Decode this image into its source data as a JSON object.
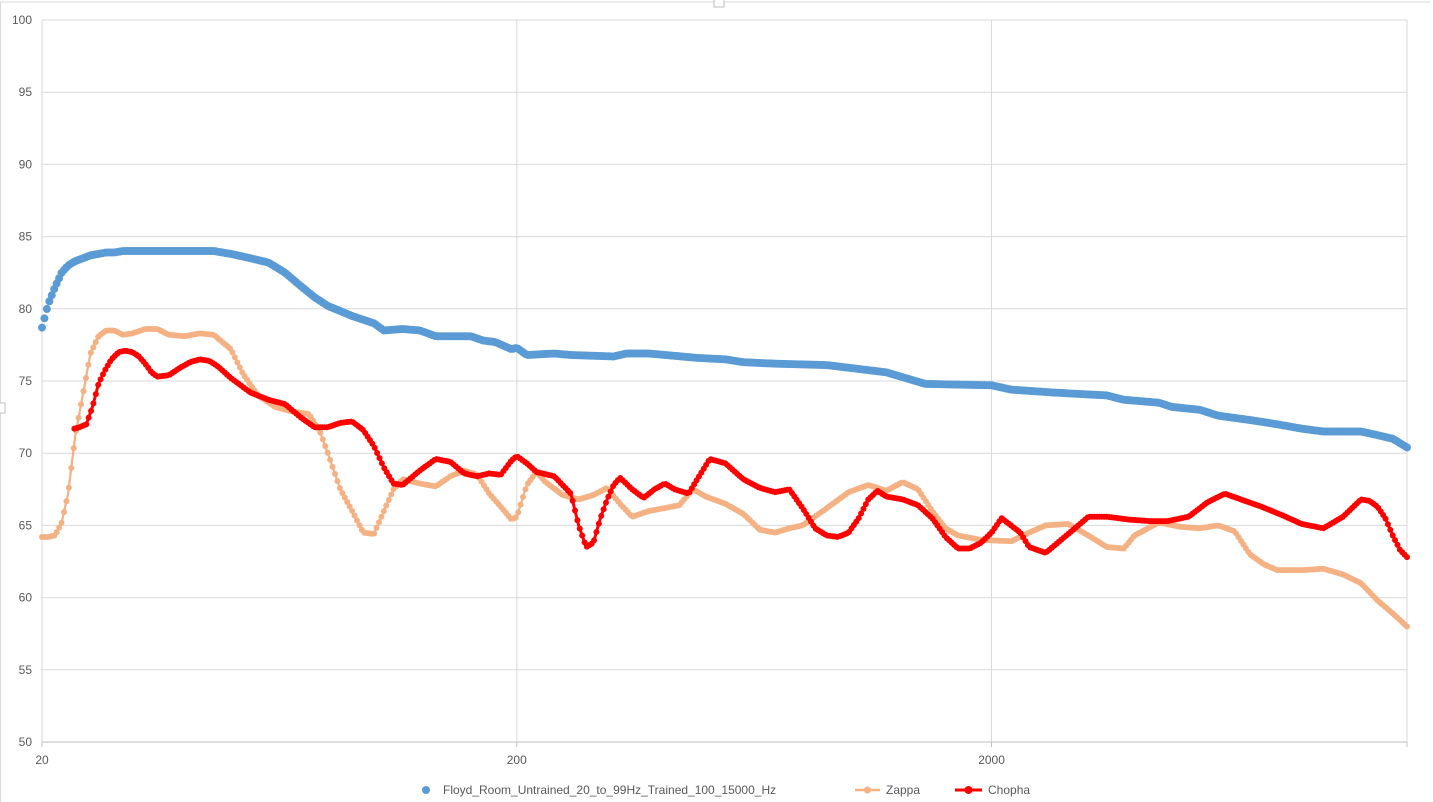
{
  "chart_data": {
    "type": "line",
    "title": "",
    "xlabel": "",
    "ylabel": "",
    "x_scale": "log",
    "xlim": [
      20,
      15000
    ],
    "ylim": [
      50,
      100
    ],
    "grid": true,
    "legend_position": "bottom",
    "x_ticks": [
      20,
      200,
      2000
    ],
    "x_tick_labels": [
      "20",
      "200",
      "2000"
    ],
    "y_ticks": [
      50,
      55,
      60,
      65,
      70,
      75,
      80,
      85,
      90,
      95,
      100
    ],
    "y_tick_labels": [
      "50",
      "55",
      "60",
      "65",
      "70",
      "75",
      "80",
      "85",
      "90",
      "95",
      "100"
    ],
    "series": [
      {
        "name": "Floyd_Room_Untrained_20_to_99Hz_Trained_100_15000_Hz",
        "color": "#5b9bd5",
        "line": false,
        "points": [
          [
            20,
            78.7
          ],
          [
            20.6,
            80.3
          ],
          [
            21.3,
            81.5
          ],
          [
            22,
            82.5
          ],
          [
            22.7,
            83
          ],
          [
            23.5,
            83.3
          ],
          [
            24.4,
            83.5
          ],
          [
            25.3,
            83.7
          ],
          [
            26.3,
            83.8
          ],
          [
            27.3,
            83.9
          ],
          [
            28.4,
            83.9
          ],
          [
            29.6,
            84
          ],
          [
            31,
            84
          ],
          [
            33,
            84
          ],
          [
            35,
            84
          ],
          [
            37,
            84
          ],
          [
            40,
            84
          ],
          [
            43,
            84
          ],
          [
            46,
            84
          ],
          [
            50,
            83.8
          ],
          [
            55,
            83.5
          ],
          [
            60,
            83.2
          ],
          [
            65,
            82.5
          ],
          [
            70,
            81.6
          ],
          [
            75,
            80.8
          ],
          [
            80,
            80.2
          ],
          [
            90,
            79.5
          ],
          [
            100,
            79
          ],
          [
            105,
            78.5
          ],
          [
            115,
            78.6
          ],
          [
            125,
            78.5
          ],
          [
            135,
            78.1
          ],
          [
            160,
            78.1
          ],
          [
            170,
            77.8
          ],
          [
            180,
            77.7
          ],
          [
            195,
            77.2
          ],
          [
            200,
            77.3
          ],
          [
            210,
            76.8
          ],
          [
            240,
            76.9
          ],
          [
            260,
            76.8
          ],
          [
            320,
            76.7
          ],
          [
            340,
            76.9
          ],
          [
            380,
            76.9
          ],
          [
            480,
            76.6
          ],
          [
            550,
            76.5
          ],
          [
            600,
            76.3
          ],
          [
            700,
            76.2
          ],
          [
            900,
            76.1
          ],
          [
            1200,
            75.6
          ],
          [
            1450,
            74.8
          ],
          [
            2000,
            74.7
          ],
          [
            2200,
            74.4
          ],
          [
            2700,
            74.2
          ],
          [
            3500,
            74
          ],
          [
            3800,
            73.7
          ],
          [
            4500,
            73.5
          ],
          [
            4800,
            73.2
          ],
          [
            5500,
            73
          ],
          [
            6000,
            72.6
          ],
          [
            7000,
            72.3
          ],
          [
            8000,
            72
          ],
          [
            9000,
            71.7
          ],
          [
            10000,
            71.5
          ],
          [
            11000,
            71.5
          ],
          [
            12000,
            71.5
          ],
          [
            12800,
            71.3
          ],
          [
            14000,
            71
          ],
          [
            15000,
            70.4
          ]
        ]
      },
      {
        "name": "Zappa",
        "color": "#f4b183",
        "line": true,
        "points": [
          [
            20,
            64.2
          ],
          [
            20.6,
            64.2
          ],
          [
            21.3,
            64.3
          ],
          [
            22,
            65.2
          ],
          [
            22.7,
            67.2
          ],
          [
            23.5,
            71.2
          ],
          [
            24.4,
            74.1
          ],
          [
            25.3,
            76.9
          ],
          [
            26.3,
            78.1
          ],
          [
            27.3,
            78.5
          ],
          [
            28.4,
            78.5
          ],
          [
            29.6,
            78.2
          ],
          [
            31,
            78.3
          ],
          [
            33,
            78.6
          ],
          [
            35,
            78.6
          ],
          [
            37,
            78.2
          ],
          [
            40,
            78.1
          ],
          [
            43,
            78.3
          ],
          [
            46,
            78.2
          ],
          [
            50,
            77.2
          ],
          [
            53,
            75.5
          ],
          [
            57,
            74
          ],
          [
            62,
            73.2
          ],
          [
            67,
            72.9
          ],
          [
            73,
            72.7
          ],
          [
            77,
            71.5
          ],
          [
            80,
            70
          ],
          [
            85,
            67.5
          ],
          [
            90,
            66
          ],
          [
            95,
            64.5
          ],
          [
            100,
            64.4
          ],
          [
            105,
            66
          ],
          [
            110,
            67.5
          ],
          [
            115,
            68.2
          ],
          [
            125,
            67.9
          ],
          [
            135,
            67.7
          ],
          [
            145,
            68.4
          ],
          [
            155,
            68.8
          ],
          [
            165,
            68.5
          ],
          [
            175,
            67.2
          ],
          [
            185,
            66.3
          ],
          [
            195,
            65.4
          ],
          [
            200,
            65.6
          ],
          [
            210,
            67.8
          ],
          [
            220,
            68.7
          ],
          [
            230,
            68
          ],
          [
            250,
            67.1
          ],
          [
            270,
            66.8
          ],
          [
            290,
            67.1
          ],
          [
            310,
            67.6
          ],
          [
            330,
            66.5
          ],
          [
            350,
            65.6
          ],
          [
            380,
            66
          ],
          [
            410,
            66.2
          ],
          [
            440,
            66.4
          ],
          [
            470,
            67.5
          ],
          [
            500,
            67
          ],
          [
            550,
            66.5
          ],
          [
            600,
            65.8
          ],
          [
            650,
            64.7
          ],
          [
            700,
            64.5
          ],
          [
            750,
            64.8
          ],
          [
            800,
            65
          ],
          [
            900,
            66.2
          ],
          [
            1000,
            67.3
          ],
          [
            1100,
            67.8
          ],
          [
            1200,
            67.4
          ],
          [
            1300,
            68
          ],
          [
            1400,
            67.5
          ],
          [
            1500,
            66
          ],
          [
            1600,
            64.8
          ],
          [
            1700,
            64.3
          ],
          [
            1900,
            64
          ],
          [
            2200,
            63.9
          ],
          [
            2400,
            64.5
          ],
          [
            2600,
            65
          ],
          [
            2900,
            65.1
          ],
          [
            3200,
            64.3
          ],
          [
            3500,
            63.5
          ],
          [
            3800,
            63.4
          ],
          [
            4000,
            64.3
          ],
          [
            4500,
            65.2
          ],
          [
            5000,
            64.9
          ],
          [
            5500,
            64.8
          ],
          [
            6000,
            65
          ],
          [
            6500,
            64.6
          ],
          [
            7000,
            63
          ],
          [
            7500,
            62.3
          ],
          [
            8000,
            61.9
          ],
          [
            9000,
            61.9
          ],
          [
            10000,
            62
          ],
          [
            11000,
            61.6
          ],
          [
            12000,
            61
          ],
          [
            13000,
            59.8
          ],
          [
            14000,
            58.9
          ],
          [
            15000,
            58
          ]
        ]
      },
      {
        "name": "Chopha",
        "color": "#ff0000",
        "line": true,
        "points": [
          [
            23.4,
            71.7
          ],
          [
            24,
            71.8
          ],
          [
            24.8,
            72
          ],
          [
            25.6,
            73.3
          ],
          [
            26.3,
            74.8
          ],
          [
            27.1,
            75.7
          ],
          [
            28,
            76.5
          ],
          [
            29,
            77
          ],
          [
            30,
            77.1
          ],
          [
            31,
            77
          ],
          [
            32,
            76.7
          ],
          [
            33,
            76.2
          ],
          [
            34,
            75.6
          ],
          [
            35,
            75.3
          ],
          [
            37,
            75.4
          ],
          [
            39,
            75.9
          ],
          [
            41,
            76.3
          ],
          [
            43,
            76.5
          ],
          [
            45,
            76.4
          ],
          [
            47,
            76
          ],
          [
            50,
            75.2
          ],
          [
            55,
            74.2
          ],
          [
            60,
            73.7
          ],
          [
            65,
            73.4
          ],
          [
            70,
            72.5
          ],
          [
            75,
            71.8
          ],
          [
            80,
            71.8
          ],
          [
            85,
            72.1
          ],
          [
            90,
            72.2
          ],
          [
            95,
            71.6
          ],
          [
            100,
            70.5
          ],
          [
            105,
            69
          ],
          [
            110,
            67.9
          ],
          [
            115,
            67.8
          ],
          [
            125,
            68.8
          ],
          [
            135,
            69.6
          ],
          [
            145,
            69.4
          ],
          [
            155,
            68.6
          ],
          [
            165,
            68.4
          ],
          [
            175,
            68.6
          ],
          [
            185,
            68.5
          ],
          [
            195,
            69.5
          ],
          [
            200,
            69.8
          ],
          [
            210,
            69.3
          ],
          [
            220,
            68.7
          ],
          [
            240,
            68.4
          ],
          [
            260,
            67.2
          ],
          [
            270,
            65
          ],
          [
            280,
            63.5
          ],
          [
            290,
            63.8
          ],
          [
            300,
            65.5
          ],
          [
            310,
            66.8
          ],
          [
            320,
            67.8
          ],
          [
            330,
            68.3
          ],
          [
            350,
            67.5
          ],
          [
            370,
            66.9
          ],
          [
            390,
            67.5
          ],
          [
            410,
            67.9
          ],
          [
            430,
            67.5
          ],
          [
            460,
            67.2
          ],
          [
            480,
            68.2
          ],
          [
            510,
            69.6
          ],
          [
            550,
            69.3
          ],
          [
            600,
            68.2
          ],
          [
            650,
            67.6
          ],
          [
            700,
            67.3
          ],
          [
            750,
            67.5
          ],
          [
            800,
            66.2
          ],
          [
            850,
            64.8
          ],
          [
            900,
            64.3
          ],
          [
            950,
            64.2
          ],
          [
            1000,
            64.5
          ],
          [
            1050,
            65.5
          ],
          [
            1100,
            66.8
          ],
          [
            1150,
            67.4
          ],
          [
            1200,
            67
          ],
          [
            1300,
            66.8
          ],
          [
            1400,
            66.4
          ],
          [
            1500,
            65.5
          ],
          [
            1600,
            64.2
          ],
          [
            1700,
            63.4
          ],
          [
            1800,
            63.4
          ],
          [
            1900,
            63.8
          ],
          [
            2000,
            64.5
          ],
          [
            2100,
            65.5
          ],
          [
            2300,
            64.5
          ],
          [
            2400,
            63.5
          ],
          [
            2600,
            63.1
          ],
          [
            2900,
            64.4
          ],
          [
            3200,
            65.6
          ],
          [
            3500,
            65.6
          ],
          [
            3900,
            65.4
          ],
          [
            4300,
            65.3
          ],
          [
            4700,
            65.3
          ],
          [
            5200,
            65.6
          ],
          [
            5700,
            66.6
          ],
          [
            6200,
            67.2
          ],
          [
            6700,
            66.8
          ],
          [
            7400,
            66.3
          ],
          [
            8200,
            65.7
          ],
          [
            9000,
            65.1
          ],
          [
            10000,
            64.8
          ],
          [
            11000,
            65.6
          ],
          [
            12000,
            66.8
          ],
          [
            12500,
            66.7
          ],
          [
            13000,
            66.3
          ],
          [
            13500,
            65.5
          ],
          [
            14000,
            64.3
          ],
          [
            14500,
            63.3
          ],
          [
            15000,
            62.8
          ]
        ]
      }
    ]
  }
}
